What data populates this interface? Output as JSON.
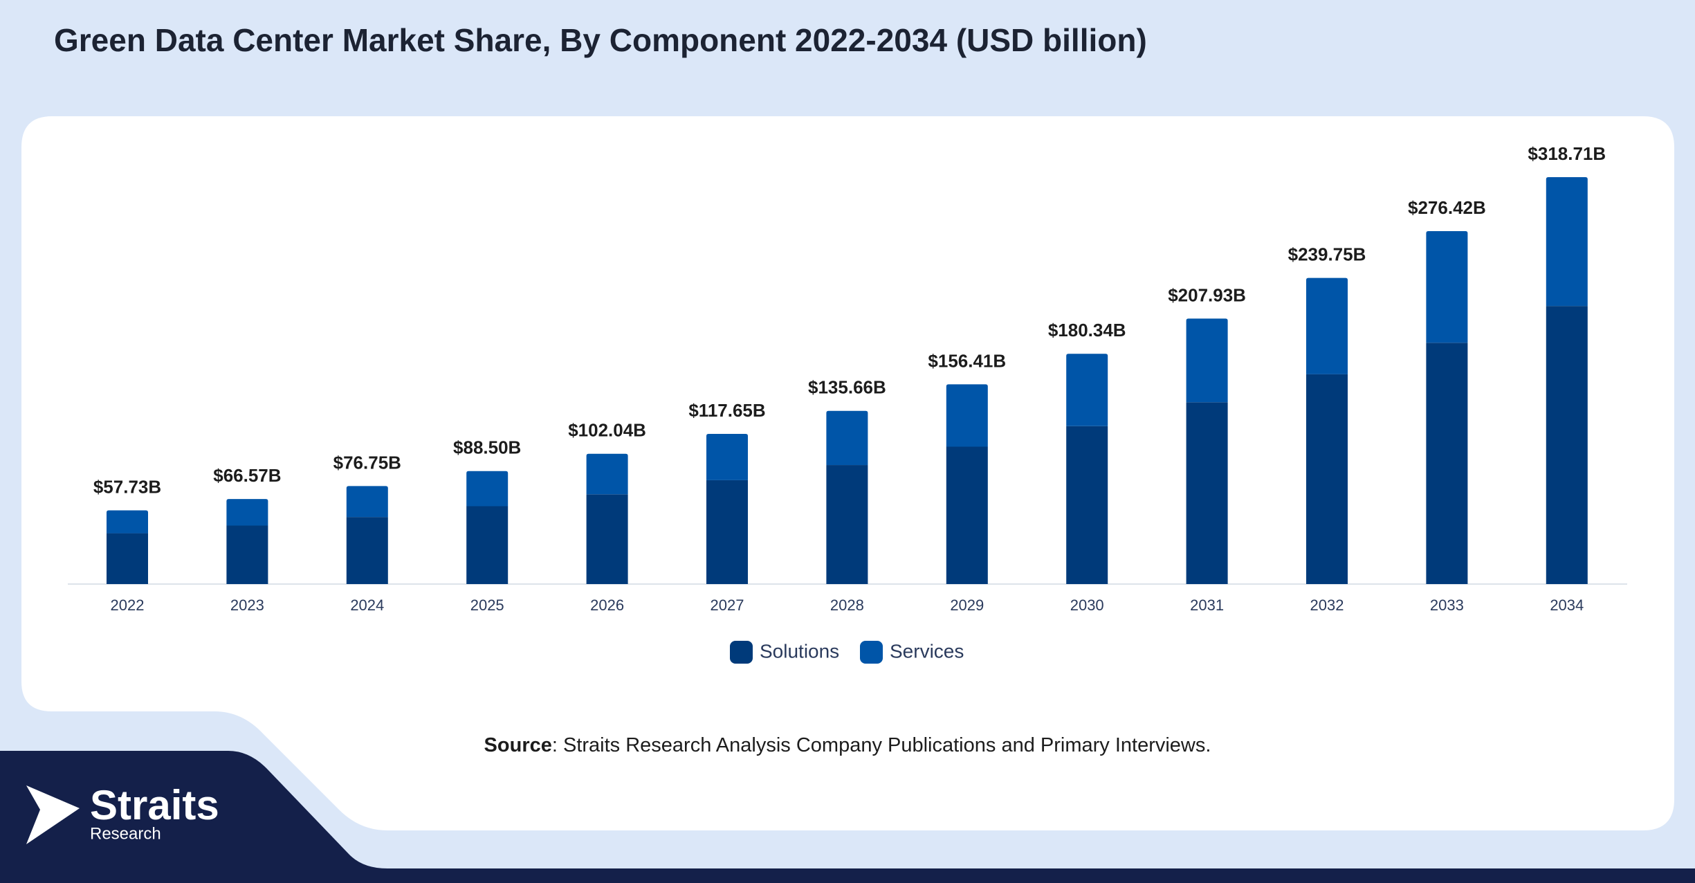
{
  "chart_data": {
    "type": "stacked-bar",
    "title": "Green Data Center Market Share, By Component 2022-2034 (USD billion)",
    "categories": [
      "2022",
      "2023",
      "2024",
      "2025",
      "2026",
      "2027",
      "2028",
      "2029",
      "2030",
      "2031",
      "2032",
      "2033",
      "2034"
    ],
    "series": [
      {
        "name": "Solutions",
        "color": "#003a7a",
        "values": [
          39.8,
          45.8,
          52.5,
          61.0,
          70.3,
          81.4,
          93.2,
          107.6,
          123.7,
          142.4,
          164.4,
          189.0,
          217.8
        ]
      },
      {
        "name": "Services",
        "color": "#0055a8",
        "values": [
          17.93,
          20.77,
          24.25,
          27.5,
          31.74,
          36.25,
          42.46,
          48.81,
          56.64,
          65.53,
          75.35,
          87.42,
          100.91
        ]
      }
    ],
    "totals": {
      "values": [
        57.73,
        66.57,
        76.75,
        88.5,
        102.04,
        117.65,
        135.66,
        156.41,
        180.34,
        207.93,
        239.75,
        276.42,
        318.71
      ],
      "value_labels": [
        "$57.73B",
        "$66.57B",
        "$76.75B",
        "$88.50B",
        "$102.04B",
        "$117.65B",
        "$135.66B",
        "$156.41B",
        "$180.34B",
        "$207.93B",
        "$239.75B",
        "$276.42B",
        "$318.71B"
      ]
    },
    "legend": "bottom"
  },
  "source": {
    "label": "Source",
    "text": ": Straits Research Analysis Company Publications and Primary Interviews."
  },
  "logo": {
    "name": "Straits",
    "tagline": "Research"
  }
}
